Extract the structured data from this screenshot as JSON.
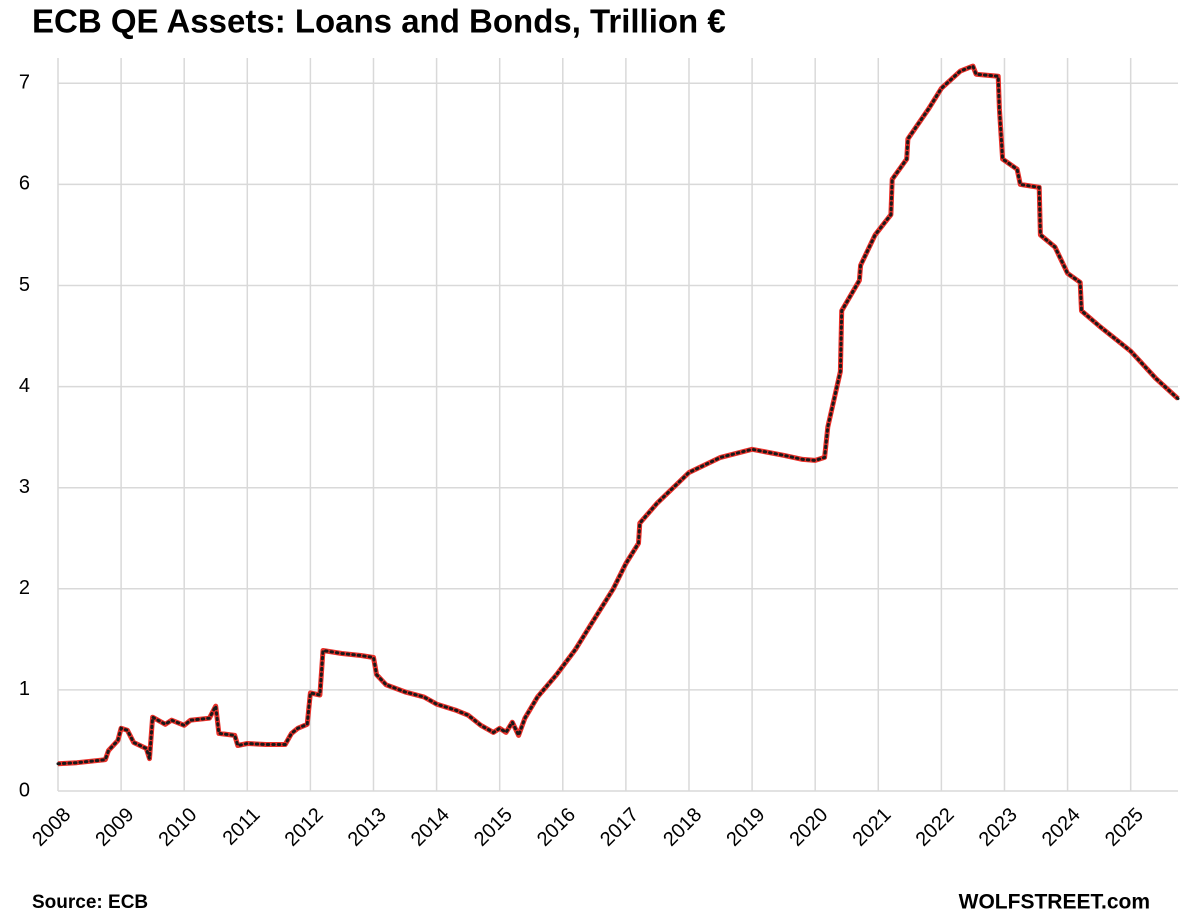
{
  "chart_data": {
    "type": "line",
    "title": "ECB QE Assets: Loans and Bonds, Trillion €",
    "source": "Source: ECB",
    "credit": "WOLFSTREET.com",
    "x": [
      2008.0,
      2008.3,
      2008.6,
      2008.75,
      2008.8,
      2008.95,
      2009.0,
      2009.1,
      2009.2,
      2009.4,
      2009.45,
      2009.5,
      2009.7,
      2009.8,
      2010.0,
      2010.1,
      2010.4,
      2010.5,
      2010.55,
      2010.8,
      2010.85,
      2011.0,
      2011.3,
      2011.6,
      2011.7,
      2011.8,
      2011.95,
      2012.0,
      2012.15,
      2012.2,
      2012.5,
      2012.8,
      2013.0,
      2013.05,
      2013.2,
      2013.5,
      2013.8,
      2014.0,
      2014.3,
      2014.5,
      2014.7,
      2014.9,
      2015.0,
      2015.1,
      2015.2,
      2015.3,
      2015.4,
      2015.6,
      2015.9,
      2016.2,
      2016.5,
      2016.8,
      2017.0,
      2017.2,
      2017.22,
      2017.5,
      2018.0,
      2018.5,
      2019.0,
      2019.5,
      2019.8,
      2020.0,
      2020.15,
      2020.2,
      2020.4,
      2020.42,
      2020.7,
      2020.72,
      2020.95,
      2021.2,
      2021.22,
      2021.45,
      2021.47,
      2021.8,
      2022.0,
      2022.3,
      2022.5,
      2022.55,
      2022.9,
      2022.92,
      2022.97,
      2023.2,
      2023.25,
      2023.55,
      2023.57,
      2023.8,
      2024.0,
      2024.2,
      2024.22,
      2024.5,
      2024.8,
      2025.0,
      2025.4,
      2025.75
    ],
    "series": [
      {
        "color": "#e8312a",
        "values": [
          0.27,
          0.28,
          0.3,
          0.31,
          0.4,
          0.5,
          0.62,
          0.6,
          0.48,
          0.42,
          0.32,
          0.73,
          0.66,
          0.7,
          0.65,
          0.7,
          0.72,
          0.84,
          0.57,
          0.55,
          0.45,
          0.47,
          0.46,
          0.46,
          0.57,
          0.62,
          0.66,
          0.97,
          0.95,
          1.39,
          1.36,
          1.34,
          1.32,
          1.15,
          1.05,
          0.98,
          0.93,
          0.86,
          0.8,
          0.75,
          0.65,
          0.58,
          0.62,
          0.58,
          0.68,
          0.55,
          0.72,
          0.93,
          1.15,
          1.4,
          1.7,
          2.0,
          2.25,
          2.45,
          2.65,
          2.85,
          3.15,
          3.3,
          3.38,
          3.32,
          3.28,
          3.27,
          3.3,
          3.6,
          4.15,
          4.75,
          5.05,
          5.2,
          5.5,
          5.7,
          6.05,
          6.25,
          6.45,
          6.75,
          6.95,
          7.12,
          7.17,
          7.09,
          7.07,
          6.75,
          6.25,
          6.15,
          6.0,
          5.97,
          5.5,
          5.38,
          5.12,
          5.03,
          4.75,
          4.6,
          4.45,
          4.35,
          4.08,
          3.88
        ]
      }
    ],
    "xlim": [
      2008,
      2025.75
    ],
    "xticks": [
      2008,
      2009,
      2010,
      2011,
      2012,
      2013,
      2014,
      2015,
      2016,
      2017,
      2018,
      2019,
      2020,
      2021,
      2022,
      2023,
      2024,
      2025
    ],
    "ylim": [
      0,
      7.25
    ],
    "yticks": [
      0,
      1,
      2,
      3,
      4,
      5,
      6,
      7
    ],
    "grid": true
  }
}
